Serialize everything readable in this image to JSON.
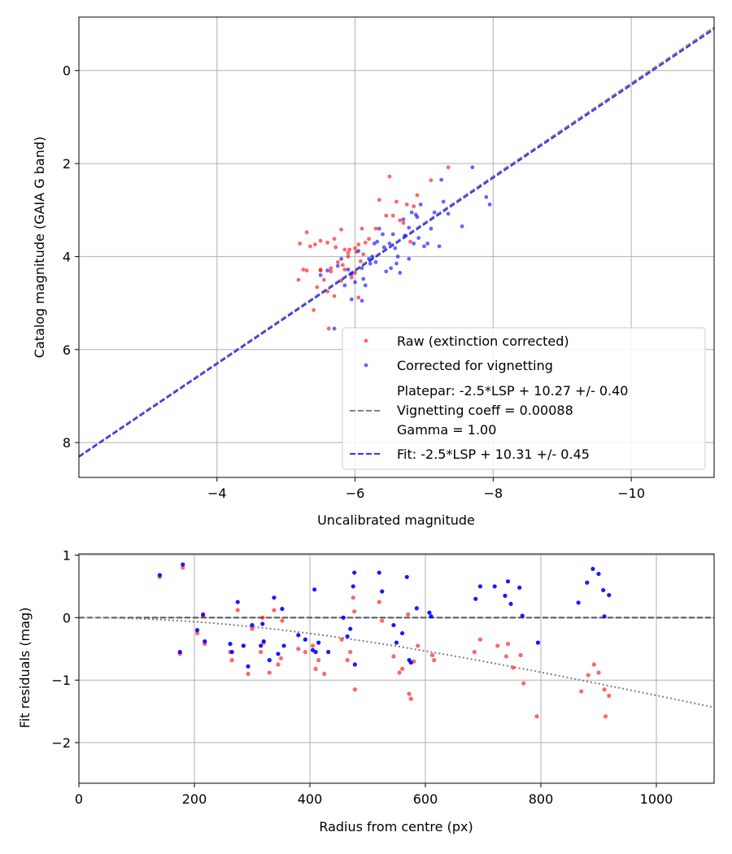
{
  "chart_data": [
    {
      "type": "scatter",
      "xlabel": "Uncalibrated magnitude",
      "ylabel": "Catalog magnitude (GAIA G band)",
      "xlim": [
        -2.0,
        -11.2
      ],
      "ylim": [
        8.75,
        -1.15
      ],
      "x_inverted": true,
      "y_inverted": true,
      "xticks": [
        -4,
        -6,
        -8,
        -10
      ],
      "xtick_labels": [
        "−4",
        "−6",
        "−8",
        "−10"
      ],
      "yticks": [
        0,
        2,
        4,
        6,
        8
      ],
      "ytick_labels": [
        "0",
        "2",
        "4",
        "6",
        "8"
      ],
      "grid": true,
      "legend_position": "lower-right",
      "series": [
        {
          "name": "Raw (extinction corrected)",
          "kind": "points",
          "color": "#ff0000",
          "points": [
            [
              -5.3,
              3.48
            ],
            [
              -5.2,
              3.72
            ],
            [
              -5.35,
              3.78
            ],
            [
              -5.42,
              3.74
            ],
            [
              -5.5,
              3.66
            ],
            [
              -5.6,
              3.7
            ],
            [
              -5.7,
              3.62
            ],
            [
              -5.8,
              3.42
            ],
            [
              -5.72,
              3.8
            ],
            [
              -5.85,
              3.85
            ],
            [
              -5.9,
              3.92
            ],
            [
              -6.0,
              3.82
            ],
            [
              -6.05,
              3.74
            ],
            [
              -6.1,
              3.4
            ],
            [
              -6.15,
              3.7
            ],
            [
              -6.2,
              3.62
            ],
            [
              -6.3,
              3.4
            ],
            [
              -6.35,
              2.78
            ],
            [
              -6.45,
              3.12
            ],
            [
              -6.5,
              2.28
            ],
            [
              -6.55,
              3.12
            ],
            [
              -6.6,
              2.82
            ],
            [
              -6.65,
              3.22
            ],
            [
              -6.7,
              3.28
            ],
            [
              -6.75,
              2.88
            ],
            [
              -6.8,
              3.68
            ],
            [
              -6.85,
              2.92
            ],
            [
              -6.9,
              2.68
            ],
            [
              -7.1,
              2.36
            ],
            [
              -7.35,
              2.08
            ],
            [
              -5.25,
              4.28
            ],
            [
              -5.18,
              4.5
            ],
            [
              -5.3,
              4.3
            ],
            [
              -5.5,
              4.28
            ],
            [
              -5.55,
              4.5
            ],
            [
              -5.45,
              4.66
            ],
            [
              -5.5,
              4.3
            ],
            [
              -5.4,
              5.15
            ],
            [
              -5.6,
              4.75
            ],
            [
              -5.65,
              4.25
            ],
            [
              -5.7,
              4.85
            ],
            [
              -5.8,
              4.52
            ],
            [
              -5.85,
              4.28
            ],
            [
              -5.95,
              4.45
            ],
            [
              -6.0,
              4.35
            ],
            [
              -6.05,
              4.88
            ],
            [
              -5.62,
              5.55
            ],
            [
              -5.75,
              4.12
            ],
            [
              -5.82,
              4.18
            ],
            [
              -5.9,
              4.0
            ],
            [
              -5.65,
              4.32
            ],
            [
              -6.08,
              4.1
            ],
            [
              -5.92,
              3.85
            ],
            [
              -6.02,
              3.9
            ],
            [
              -6.12,
              3.95
            ]
          ]
        },
        {
          "name": "Corrected for vignetting",
          "kind": "points",
          "color": "#0000ff",
          "points": [
            [
              -5.6,
              4.3
            ],
            [
              -5.7,
              5.55
            ],
            [
              -5.75,
              4.2
            ],
            [
              -5.8,
              4.05
            ],
            [
              -5.9,
              4.28
            ],
            [
              -5.95,
              4.38
            ],
            [
              -6.0,
              4.55
            ],
            [
              -6.05,
              3.88
            ],
            [
              -6.1,
              4.95
            ],
            [
              -6.1,
              4.25
            ],
            [
              -6.15,
              4.62
            ],
            [
              -6.2,
              4.05
            ],
            [
              -6.22,
              4.15
            ],
            [
              -6.28,
              3.72
            ],
            [
              -6.3,
              4.12
            ],
            [
              -6.35,
              3.4
            ],
            [
              -6.42,
              3.8
            ],
            [
              -6.5,
              3.72
            ],
            [
              -6.52,
              4.25
            ],
            [
              -6.55,
              3.52
            ],
            [
              -6.6,
              4.15
            ],
            [
              -6.65,
              4.35
            ],
            [
              -6.7,
              3.2
            ],
            [
              -6.72,
              3.55
            ],
            [
              -6.78,
              3.38
            ],
            [
              -6.85,
              3.72
            ],
            [
              -6.82,
              3.05
            ],
            [
              -6.9,
              3.15
            ],
            [
              -6.95,
              2.88
            ],
            [
              -7.05,
              3.72
            ],
            [
              -7.1,
              3.4
            ],
            [
              -7.15,
              3.05
            ],
            [
              -7.22,
              3.78
            ],
            [
              -7.25,
              2.35
            ],
            [
              -7.35,
              3.08
            ],
            [
              -7.55,
              3.35
            ],
            [
              -7.7,
              2.08
            ],
            [
              -7.9,
              2.72
            ],
            [
              -7.95,
              2.88
            ],
            [
              -5.5,
              4.4
            ],
            [
              -5.85,
              4.62
            ],
            [
              -5.95,
              4.92
            ],
            [
              -6.25,
              4.0
            ],
            [
              -6.45,
              4.32
            ],
            [
              -6.62,
              4.0
            ],
            [
              -6.78,
              4.05
            ],
            [
              -6.92,
              3.6
            ],
            [
              -7.0,
              3.78
            ],
            [
              -6.88,
              3.1
            ],
            [
              -7.28,
              2.82
            ],
            [
              -6.32,
              3.68
            ],
            [
              -6.12,
              4.48
            ],
            [
              -6.4,
              3.52
            ],
            [
              -6.58,
              3.82
            ]
          ]
        },
        {
          "name": "Platepar: -2.5*LSP + 10.27 +/- 0.40\nVignetting coeff = 0.00088\nGamma = 1.00",
          "kind": "line",
          "style": "dashed",
          "color": "#808080",
          "x": [
            -2.0,
            -11.2
          ],
          "y": [
            8.29,
            -0.93
          ]
        },
        {
          "name": "Fit: -2.5*LSP + 10.31 +/- 0.45",
          "kind": "line",
          "style": "dashed",
          "color": "#3333ff",
          "x": [
            -2.0,
            -11.2
          ],
          "y": [
            8.31,
            -0.89
          ]
        }
      ],
      "legend": [
        {
          "label": "Raw (extinction corrected)",
          "symbol": "dot",
          "color": "#ff0000"
        },
        {
          "label": "Corrected for vignetting",
          "symbol": "dot",
          "color": "#0000ff"
        },
        {
          "label": "Platepar: -2.5*LSP + 10.27 +/- 0.40",
          "symbol": "dash",
          "color": "#808080"
        },
        {
          "label": "Vignetting coeff = 0.00088",
          "symbol": "none",
          "color": "#808080"
        },
        {
          "label": "Gamma = 1.00",
          "symbol": "none",
          "color": "#808080"
        },
        {
          "label": "Fit: -2.5*LSP + 10.31 +/- 0.45",
          "symbol": "dash",
          "color": "#3333ff"
        }
      ]
    },
    {
      "type": "scatter",
      "xlabel": "Radius from centre (px)",
      "ylabel": "Fit residuals (mag)",
      "xlim": [
        0,
        1100
      ],
      "ylim": [
        -2.65,
        1.02
      ],
      "xticks": [
        0,
        200,
        400,
        600,
        800,
        1000
      ],
      "xtick_labels": [
        "0",
        "200",
        "400",
        "600",
        "800",
        "1000"
      ],
      "yticks": [
        1,
        0,
        -1,
        -2
      ],
      "ytick_labels": [
        "1",
        "0",
        "−1",
        "−2"
      ],
      "grid": true,
      "series": [
        {
          "name": "raw residuals",
          "kind": "points",
          "color": "#ff0000",
          "points": [
            [
              140,
              0.65
            ],
            [
              180,
              0.8
            ],
            [
              175,
              -0.58
            ],
            [
              205,
              -0.25
            ],
            [
              215,
              0.02
            ],
            [
              218,
              -0.42
            ],
            [
              262,
              -0.55
            ],
            [
              265,
              -0.68
            ],
            [
              275,
              0.12
            ],
            [
              285,
              -0.45
            ],
            [
              293,
              -0.9
            ],
            [
              300,
              -0.18
            ],
            [
              315,
              -0.55
            ],
            [
              318,
              0.0
            ],
            [
              320,
              -0.4
            ],
            [
              330,
              -0.88
            ],
            [
              338,
              0.12
            ],
            [
              345,
              -0.75
            ],
            [
              350,
              -0.65
            ],
            [
              352,
              -0.05
            ],
            [
              380,
              -0.5
            ],
            [
              392,
              -0.55
            ],
            [
              405,
              -0.45
            ],
            [
              410,
              -0.82
            ],
            [
              415,
              -0.68
            ],
            [
              425,
              -0.9
            ],
            [
              455,
              -0.35
            ],
            [
              465,
              -0.68
            ],
            [
              470,
              -0.55
            ],
            [
              475,
              0.32
            ],
            [
              477,
              0.1
            ],
            [
              478,
              -1.15
            ],
            [
              520,
              0.25
            ],
            [
              525,
              -0.05
            ],
            [
              545,
              -0.62
            ],
            [
              555,
              -0.88
            ],
            [
              560,
              -0.82
            ],
            [
              570,
              0.05
            ],
            [
              572,
              -1.22
            ],
            [
              575,
              -1.3
            ],
            [
              580,
              -0.7
            ],
            [
              587,
              -0.45
            ],
            [
              612,
              -0.6
            ],
            [
              615,
              -0.68
            ],
            [
              685,
              -0.55
            ],
            [
              695,
              -0.35
            ],
            [
              725,
              -0.45
            ],
            [
              740,
              -0.62
            ],
            [
              743,
              -0.42
            ],
            [
              752,
              -0.8
            ],
            [
              765,
              -0.6
            ],
            [
              770,
              -1.05
            ],
            [
              793,
              -1.58
            ],
            [
              870,
              -1.18
            ],
            [
              882,
              -0.92
            ],
            [
              892,
              -0.75
            ],
            [
              900,
              -0.88
            ],
            [
              910,
              -1.15
            ],
            [
              912,
              -1.58
            ],
            [
              918,
              -1.25
            ]
          ]
        },
        {
          "name": "corrected residuals",
          "kind": "points",
          "color": "#0000ff",
          "points": [
            [
              140,
              0.68
            ],
            [
              180,
              0.85
            ],
            [
              175,
              -0.55
            ],
            [
              205,
              -0.2
            ],
            [
              215,
              0.05
            ],
            [
              218,
              -0.38
            ],
            [
              262,
              -0.42
            ],
            [
              265,
              -0.55
            ],
            [
              275,
              0.25
            ],
            [
              285,
              -0.45
            ],
            [
              293,
              -0.78
            ],
            [
              300,
              -0.12
            ],
            [
              315,
              -0.45
            ],
            [
              318,
              -0.1
            ],
            [
              320,
              -0.38
            ],
            [
              330,
              -0.68
            ],
            [
              338,
              0.32
            ],
            [
              345,
              -0.58
            ],
            [
              352,
              0.14
            ],
            [
              355,
              -0.45
            ],
            [
              380,
              -0.28
            ],
            [
              392,
              -0.35
            ],
            [
              405,
              -0.52
            ],
            [
              408,
              0.45
            ],
            [
              410,
              -0.55
            ],
            [
              415,
              -0.4
            ],
            [
              432,
              -0.55
            ],
            [
              458,
              0.0
            ],
            [
              465,
              -0.3
            ],
            [
              470,
              -0.18
            ],
            [
              475,
              0.5
            ],
            [
              477,
              0.72
            ],
            [
              478,
              -0.75
            ],
            [
              520,
              0.72
            ],
            [
              525,
              0.42
            ],
            [
              545,
              -0.12
            ],
            [
              550,
              -0.4
            ],
            [
              560,
              -0.25
            ],
            [
              568,
              0.65
            ],
            [
              572,
              -0.68
            ],
            [
              575,
              -0.72
            ],
            [
              585,
              0.15
            ],
            [
              607,
              0.08
            ],
            [
              610,
              0.02
            ],
            [
              687,
              0.3
            ],
            [
              695,
              0.5
            ],
            [
              720,
              0.5
            ],
            [
              738,
              0.35
            ],
            [
              743,
              0.58
            ],
            [
              748,
              0.22
            ],
            [
              763,
              0.48
            ],
            [
              768,
              0.03
            ],
            [
              795,
              -0.4
            ],
            [
              865,
              0.24
            ],
            [
              880,
              0.56
            ],
            [
              890,
              0.78
            ],
            [
              900,
              0.7
            ],
            [
              908,
              0.44
            ],
            [
              910,
              0.02
            ],
            [
              918,
              0.36
            ]
          ]
        },
        {
          "name": "zero line",
          "kind": "line",
          "style": "dashed",
          "color": "#555555",
          "x": [
            0,
            1100
          ],
          "y": [
            0,
            0
          ]
        },
        {
          "name": "vignetting model",
          "kind": "curve",
          "style": "dotted",
          "color": "#808080",
          "coeff": 0.00088,
          "x_range": [
            0,
            1100
          ]
        }
      ]
    }
  ]
}
